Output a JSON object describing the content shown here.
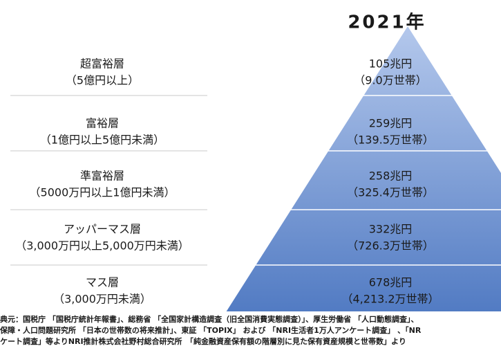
{
  "title": "2021年",
  "tiers": [
    {
      "name": "超富裕層",
      "range": "（5億円以上）",
      "assets": "105兆円",
      "households": "（9.0万世帯）"
    },
    {
      "name": "富裕層",
      "range": "（1億円以上5億円未満）",
      "assets": "259兆円",
      "households": "（139.5万世帯）"
    },
    {
      "name": "準富裕層",
      "range": "（5000万円以上1億円未満）",
      "assets": "258兆円",
      "households": "（325.4万世帯）"
    },
    {
      "name": "アッパーマス層",
      "range": "（3,000万円以上5,000万円未満）",
      "assets": "332兆円",
      "households": "（726.3万世帯）"
    },
    {
      "name": "マス層",
      "range": "（3,000万円未満）",
      "assets": "678兆円",
      "households": "（4,213.2万世帯）"
    }
  ],
  "source": [
    "典元：国税庁 「国税庁統計年報書」、総務省 「全国家計構造調査（旧全国消費実態調査）」、厚生労働省 「人口動態調査」、",
    "保障・人口問題研究所 「日本の世帯数の将来推計」、東証 「TOPIX」 および 「NRI生活者1万人アンケート調査」 、「NR",
    "ケート調査」等よりNRI推計株式会社野村総合研究所　「純金融資産保有額の階層別に見た保有資産規模と世帯数」より"
  ]
}
